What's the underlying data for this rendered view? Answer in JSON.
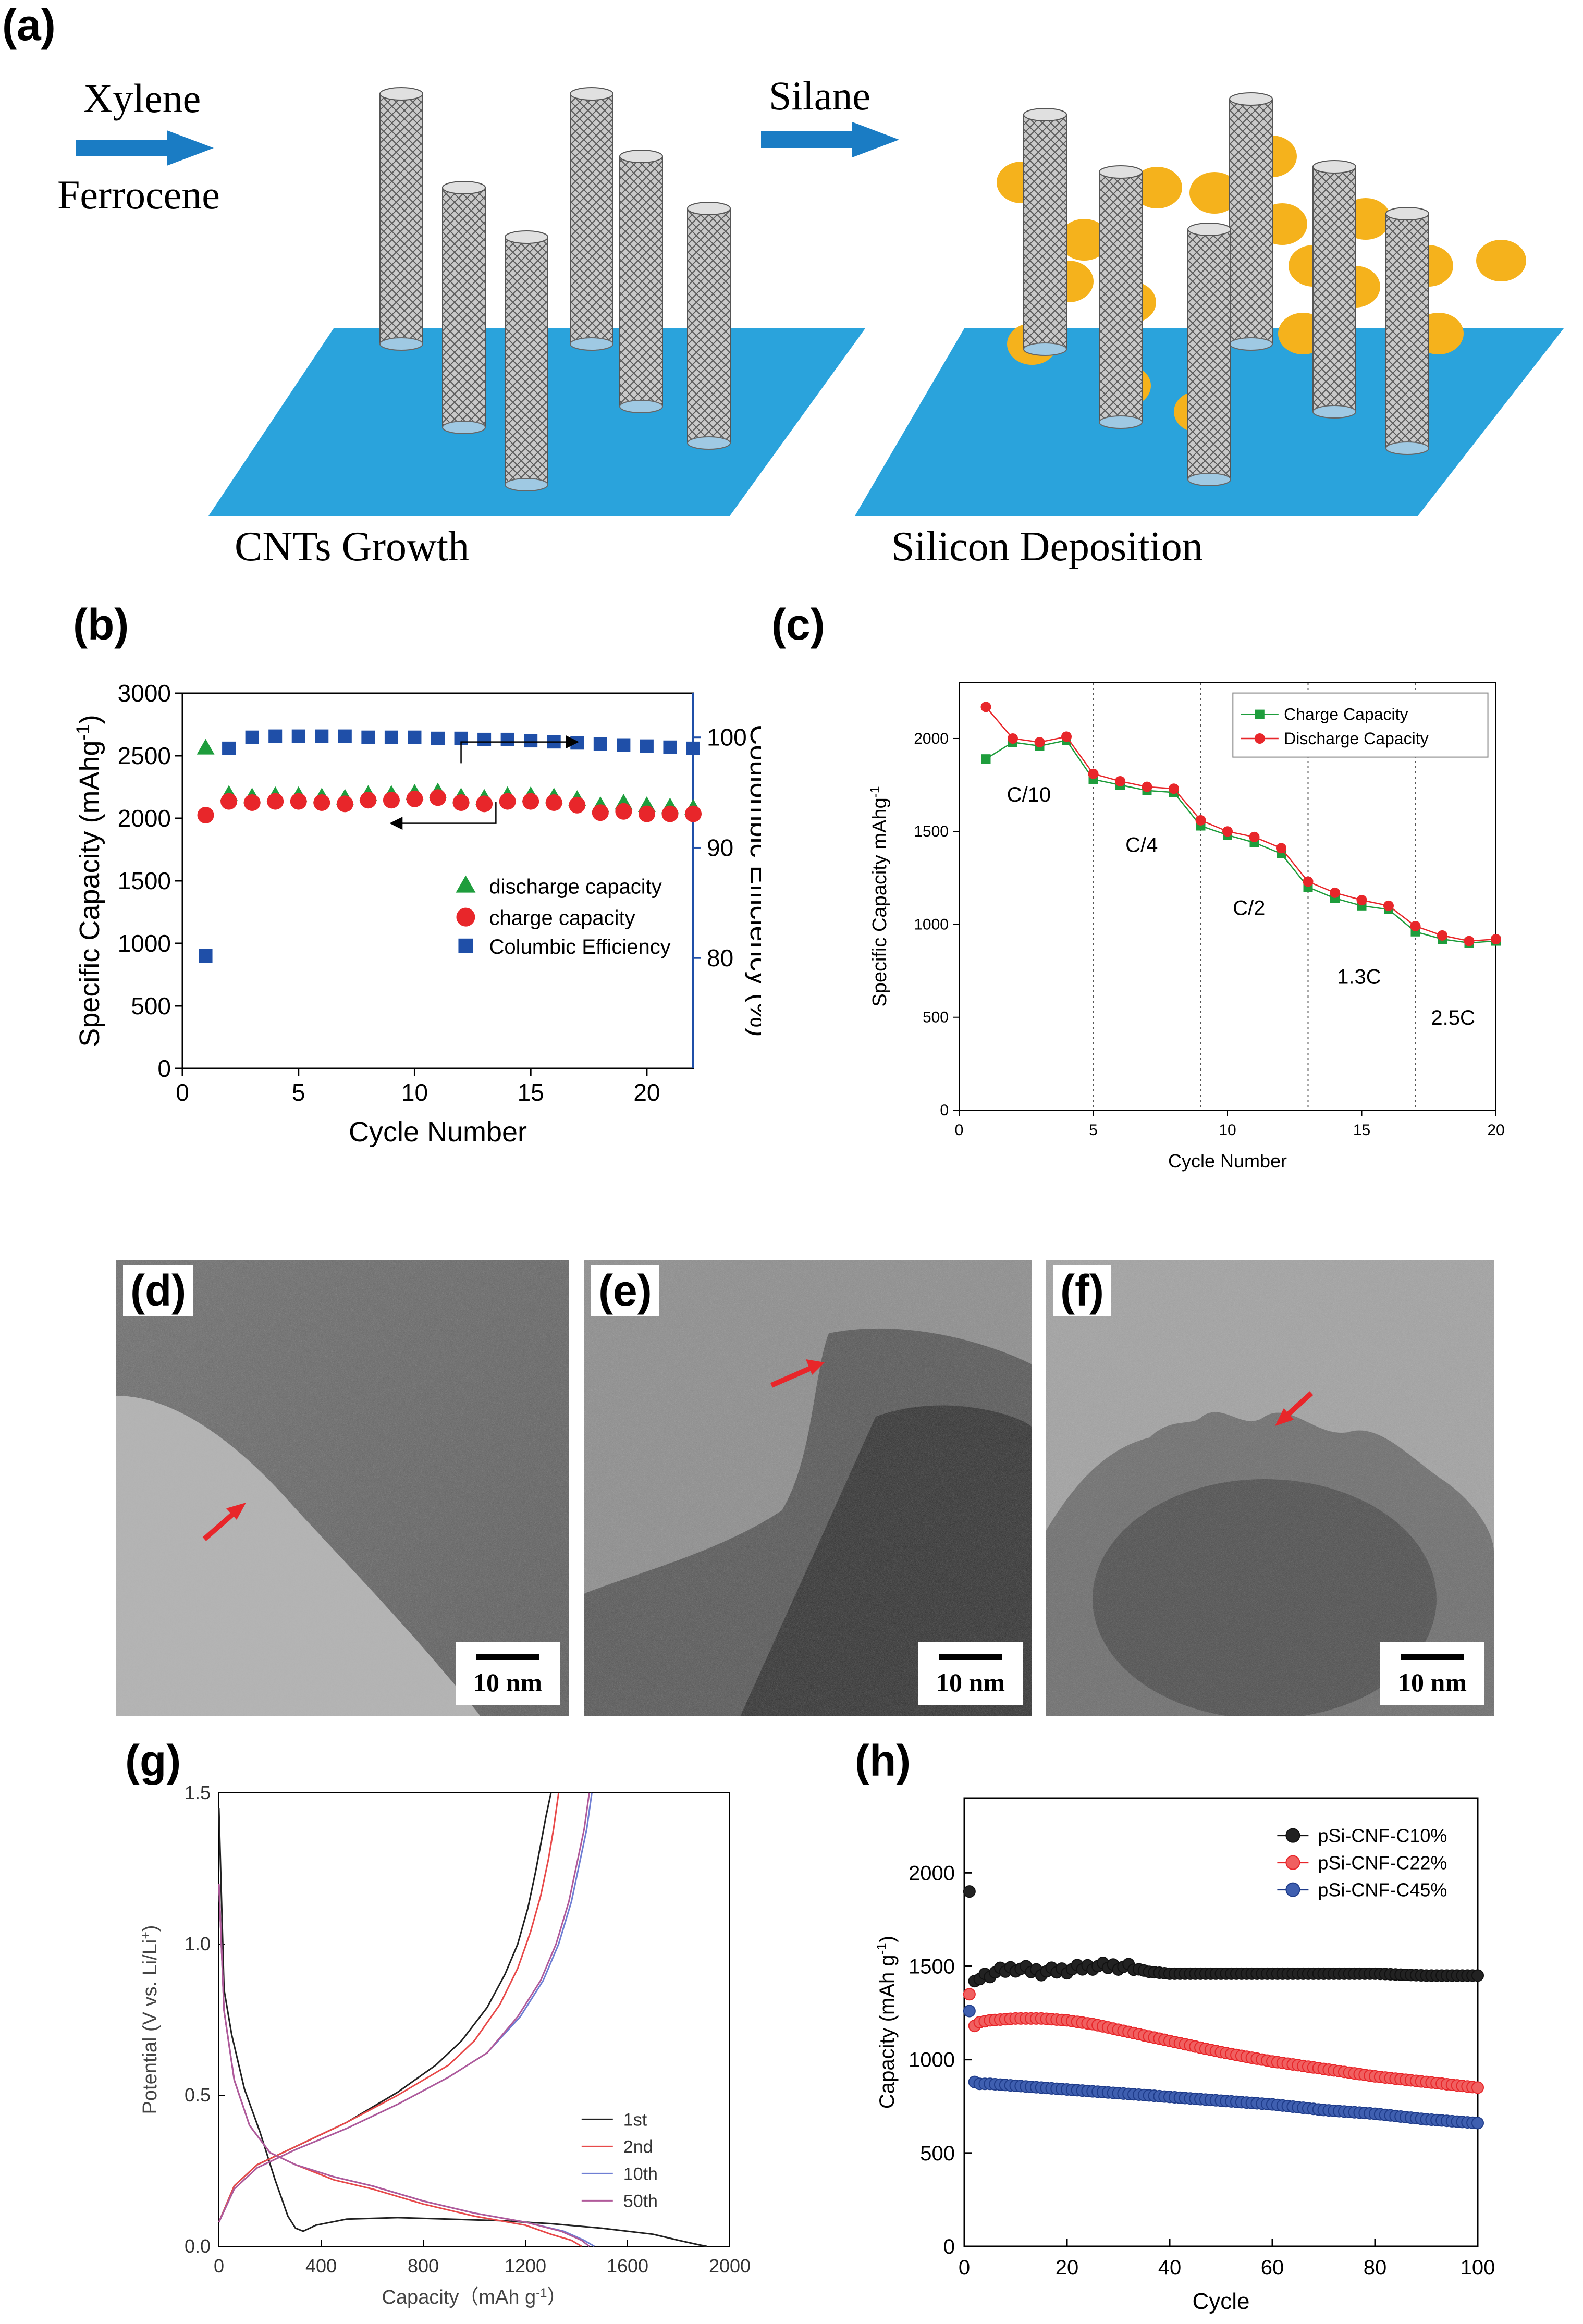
{
  "figure": {
    "panel_labels": {
      "a": "(a)",
      "b": "(b)",
      "c": "(c)",
      "d": "(d)",
      "e": "(e)",
      "f": "(f)",
      "g": "(g)",
      "h": "(h)"
    }
  },
  "schematic": {
    "reagent_top_1": "Xylene",
    "reagent_bottom_1": "Ferrocene",
    "reagent_2": "Silane",
    "step_1": "CNTs Growth",
    "step_2": "Silicon Deposition",
    "colors": {
      "substrate": "#2aa3dc",
      "arrow": "#1a7cc4",
      "particle": "#f5b21c",
      "tube": "#8a8a8a"
    }
  },
  "tem": {
    "scale_label": "10 nm",
    "arrow_color": "#e8262a"
  },
  "chart_data": [
    {
      "id": "b",
      "type": "scatter",
      "xlabel": "Cycle Number",
      "ylabel": "Specific Capacity (mAhg",
      "ylabel_sup": "-1",
      "ylabel_end": ")",
      "y2label": "Coulombic Efficiency (%)",
      "xlim": [
        0,
        22
      ],
      "ylim": [
        0,
        3000
      ],
      "y2lim": [
        70,
        104
      ],
      "xticks": [
        0,
        5,
        10,
        15,
        20
      ],
      "yticks": [
        0,
        500,
        1000,
        1500,
        2000,
        2500,
        3000
      ],
      "y2ticks": [
        80,
        90,
        100
      ],
      "legend": [
        "discharge capacity",
        "charge capacity",
        "Columbic Efficiency"
      ],
      "series": [
        {
          "name": "discharge capacity",
          "color": "#1e9d3c",
          "axis": "left",
          "x": [
            1,
            2,
            3,
            4,
            5,
            6,
            7,
            8,
            9,
            10,
            11,
            12,
            13,
            14,
            15,
            16,
            17,
            18,
            19,
            20,
            21,
            22
          ],
          "values": [
            2560,
            2190,
            2170,
            2180,
            2180,
            2170,
            2160,
            2190,
            2190,
            2200,
            2210,
            2170,
            2160,
            2180,
            2180,
            2170,
            2150,
            2100,
            2120,
            2100,
            2090,
            2080
          ]
        },
        {
          "name": "charge capacity",
          "color": "#e8262a",
          "axis": "left",
          "x": [
            1,
            2,
            3,
            4,
            5,
            6,
            7,
            8,
            9,
            10,
            11,
            12,
            13,
            14,
            15,
            16,
            17,
            18,
            19,
            20,
            21,
            22
          ],
          "values": [
            2050,
            2160,
            2150,
            2160,
            2160,
            2150,
            2140,
            2170,
            2170,
            2180,
            2190,
            2150,
            2140,
            2160,
            2160,
            2150,
            2130,
            2070,
            2080,
            2060,
            2060,
            2060
          ]
        },
        {
          "name": "Columbic Efficiency",
          "color": "#1f4fa8",
          "axis": "right",
          "x": [
            1,
            2,
            3,
            4,
            5,
            6,
            7,
            8,
            9,
            10,
            11,
            12,
            13,
            14,
            15,
            16,
            17,
            18,
            19,
            20,
            21,
            22
          ],
          "values": [
            80.2,
            99.0,
            100.0,
            100.1,
            100.1,
            100.1,
            100.1,
            100.0,
            100.0,
            100.0,
            99.9,
            99.9,
            99.8,
            99.8,
            99.7,
            99.6,
            99.5,
            99.4,
            99.3,
            99.2,
            99.1,
            99.0
          ]
        }
      ]
    },
    {
      "id": "c",
      "type": "line",
      "xlabel": "Cycle Number",
      "ylabel": "Specific Capacity mAhg",
      "ylabel_sup": "-1",
      "xlim": [
        0,
        20
      ],
      "ylim": [
        0,
        2300
      ],
      "xticks": [
        0,
        5,
        10,
        15,
        20
      ],
      "yticks": [
        0,
        500,
        1000,
        1500,
        2000
      ],
      "vlines": [
        5,
        9,
        13,
        17
      ],
      "rate_labels": [
        {
          "text": "C/10",
          "x": 2.6,
          "y": 1660
        },
        {
          "text": "C/4",
          "x": 6.8,
          "y": 1390
        },
        {
          "text": "C/2",
          "x": 10.8,
          "y": 1050
        },
        {
          "text": "1.3C",
          "x": 14.9,
          "y": 680
        },
        {
          "text": "2.5C",
          "x": 18.4,
          "y": 460
        }
      ],
      "x": [
        1,
        2,
        3,
        4,
        5,
        6,
        7,
        8,
        9,
        10,
        11,
        12,
        13,
        14,
        15,
        16,
        17,
        18,
        19,
        20
      ],
      "series": [
        {
          "name": "Charge Capacity",
          "color": "#1e9d3c",
          "marker": "square",
          "values": [
            1890,
            1980,
            1960,
            1990,
            1780,
            1750,
            1720,
            1710,
            1530,
            1480,
            1440,
            1380,
            1200,
            1140,
            1100,
            1080,
            960,
            920,
            900,
            910
          ]
        },
        {
          "name": "Discharge Capacity",
          "color": "#e8262a",
          "marker": "circle",
          "values": [
            2170,
            2000,
            1980,
            2010,
            1810,
            1770,
            1740,
            1730,
            1560,
            1500,
            1470,
            1410,
            1230,
            1170,
            1130,
            1100,
            990,
            940,
            910,
            920
          ]
        }
      ]
    },
    {
      "id": "g",
      "type": "line",
      "xlabel": "Capacity（mAh g",
      "xlabel_sup": "-1",
      "xlabel_end": "）",
      "ylabel": "Potential (V vs. Li/Li",
      "ylabel_sup": "+",
      "ylabel_end": ")",
      "xlim": [
        0,
        2000
      ],
      "ylim": [
        0,
        1.5
      ],
      "xticks": [
        0,
        400,
        800,
        1200,
        1600,
        2000
      ],
      "yticks": [
        0.0,
        0.5,
        1.0,
        1.5
      ],
      "legend": [
        "1st",
        "2nd",
        "10th",
        "50th"
      ],
      "series": [
        {
          "name": "1st",
          "color": "#222222",
          "discharge": {
            "x": [
              0,
              20,
              50,
              100,
              160,
              220,
              270,
              300,
              330,
              380,
              500,
              700,
              900,
              1100,
              1300,
              1500,
              1700,
              1800,
              1880,
              1910
            ],
            "y": [
              1.45,
              0.85,
              0.7,
              0.52,
              0.38,
              0.22,
              0.1,
              0.06,
              0.05,
              0.07,
              0.09,
              0.095,
              0.09,
              0.085,
              0.075,
              0.06,
              0.04,
              0.02,
              0.005,
              0.0
            ]
          },
          "charge": {
            "x": [
              0,
              60,
              150,
              300,
              500,
              700,
              850,
              950,
              1050,
              1120,
              1170,
              1210,
              1240,
              1260,
              1280,
              1300
            ],
            "y": [
              0.08,
              0.2,
              0.27,
              0.33,
              0.41,
              0.51,
              0.6,
              0.68,
              0.79,
              0.9,
              1.0,
              1.12,
              1.24,
              1.33,
              1.42,
              1.5
            ]
          }
        },
        {
          "name": "2nd",
          "color": "#e84a4a",
          "discharge": {
            "x": [
              0,
              20,
              60,
              120,
              200,
              300,
              450,
              600,
              800,
              1000,
              1200,
              1300,
              1380,
              1420
            ],
            "y": [
              1.2,
              0.78,
              0.55,
              0.4,
              0.31,
              0.27,
              0.22,
              0.19,
              0.14,
              0.1,
              0.07,
              0.04,
              0.02,
              0.0
            ]
          },
          "charge": {
            "x": [
              0,
              60,
              150,
              300,
              500,
              700,
              900,
              1000,
              1100,
              1170,
              1220,
              1260,
              1290,
              1310,
              1330
            ],
            "y": [
              0.08,
              0.2,
              0.27,
              0.33,
              0.41,
              0.5,
              0.6,
              0.68,
              0.8,
              0.92,
              1.04,
              1.16,
              1.28,
              1.38,
              1.5
            ]
          }
        },
        {
          "name": "10th",
          "color": "#6f7fd4",
          "discharge": {
            "x": [
              0,
              20,
              60,
              120,
              200,
              300,
              450,
              600,
              800,
              1000,
              1200,
              1350,
              1430,
              1470
            ],
            "y": [
              1.2,
              0.78,
              0.55,
              0.4,
              0.31,
              0.27,
              0.23,
              0.2,
              0.15,
              0.11,
              0.08,
              0.05,
              0.02,
              0.0
            ]
          },
          "charge": {
            "x": [
              0,
              60,
              150,
              300,
              500,
              700,
              900,
              1050,
              1180,
              1270,
              1330,
              1380,
              1410,
              1440,
              1460
            ],
            "y": [
              0.08,
              0.19,
              0.26,
              0.32,
              0.39,
              0.47,
              0.56,
              0.64,
              0.76,
              0.88,
              1.0,
              1.14,
              1.26,
              1.38,
              1.5
            ]
          }
        },
        {
          "name": "50th",
          "color": "#b05a9a",
          "discharge": {
            "x": [
              0,
              20,
              60,
              120,
              200,
              300,
              450,
              600,
              800,
              1000,
              1200,
              1340,
              1420,
              1450
            ],
            "y": [
              1.2,
              0.78,
              0.55,
              0.4,
              0.31,
              0.27,
              0.23,
              0.2,
              0.15,
              0.11,
              0.08,
              0.05,
              0.02,
              0.0
            ]
          },
          "charge": {
            "x": [
              0,
              60,
              150,
              300,
              500,
              700,
              900,
              1050,
              1170,
              1260,
              1320,
              1370,
              1400,
              1430,
              1450
            ],
            "y": [
              0.08,
              0.19,
              0.26,
              0.32,
              0.39,
              0.47,
              0.56,
              0.64,
              0.76,
              0.88,
              1.0,
              1.14,
              1.26,
              1.38,
              1.5
            ]
          }
        }
      ]
    },
    {
      "id": "h",
      "type": "line",
      "xlabel": "Cycle",
      "ylabel": "Capacity (mAh g",
      "ylabel_sup": "-1",
      "ylabel_end": ")",
      "xlim": [
        0,
        100
      ],
      "ylim": [
        0,
        2400
      ],
      "xticks": [
        0,
        20,
        40,
        60,
        80,
        100
      ],
      "yticks": [
        0,
        500,
        1000,
        1500,
        2000
      ],
      "legend": [
        "pSi-CNF-C10%",
        "pSi-CNF-C22%",
        "pSi-CNF-C45%"
      ],
      "series": [
        {
          "name": "pSi-CNF-C10%",
          "color": "#111111",
          "fill": "#222222",
          "anchors_x": [
            1,
            2,
            3,
            5,
            8,
            10,
            15,
            20,
            25,
            30,
            33,
            36,
            40,
            50,
            60,
            70,
            80,
            90,
            100
          ],
          "anchors_y": [
            1900,
            1420,
            1440,
            1460,
            1480,
            1490,
            1470,
            1480,
            1500,
            1500,
            1490,
            1470,
            1460,
            1460,
            1460,
            1460,
            1460,
            1450,
            1450
          ]
        },
        {
          "name": "pSi-CNF-C22%",
          "color": "#e8262a",
          "fill": "#f06060",
          "anchors_x": [
            1,
            2,
            3,
            5,
            10,
            15,
            20,
            25,
            30,
            40,
            50,
            60,
            70,
            80,
            90,
            100
          ],
          "anchors_y": [
            1350,
            1180,
            1200,
            1210,
            1220,
            1220,
            1210,
            1190,
            1160,
            1100,
            1040,
            990,
            950,
            910,
            880,
            850
          ]
        },
        {
          "name": "pSi-CNF-C45%",
          "color": "#1f3c8a",
          "fill": "#3f5fb0",
          "anchors_x": [
            1,
            2,
            3,
            5,
            10,
            20,
            30,
            40,
            50,
            60,
            70,
            80,
            90,
            100
          ],
          "anchors_y": [
            1260,
            880,
            870,
            870,
            860,
            840,
            820,
            800,
            780,
            760,
            730,
            710,
            680,
            660
          ]
        }
      ]
    }
  ]
}
